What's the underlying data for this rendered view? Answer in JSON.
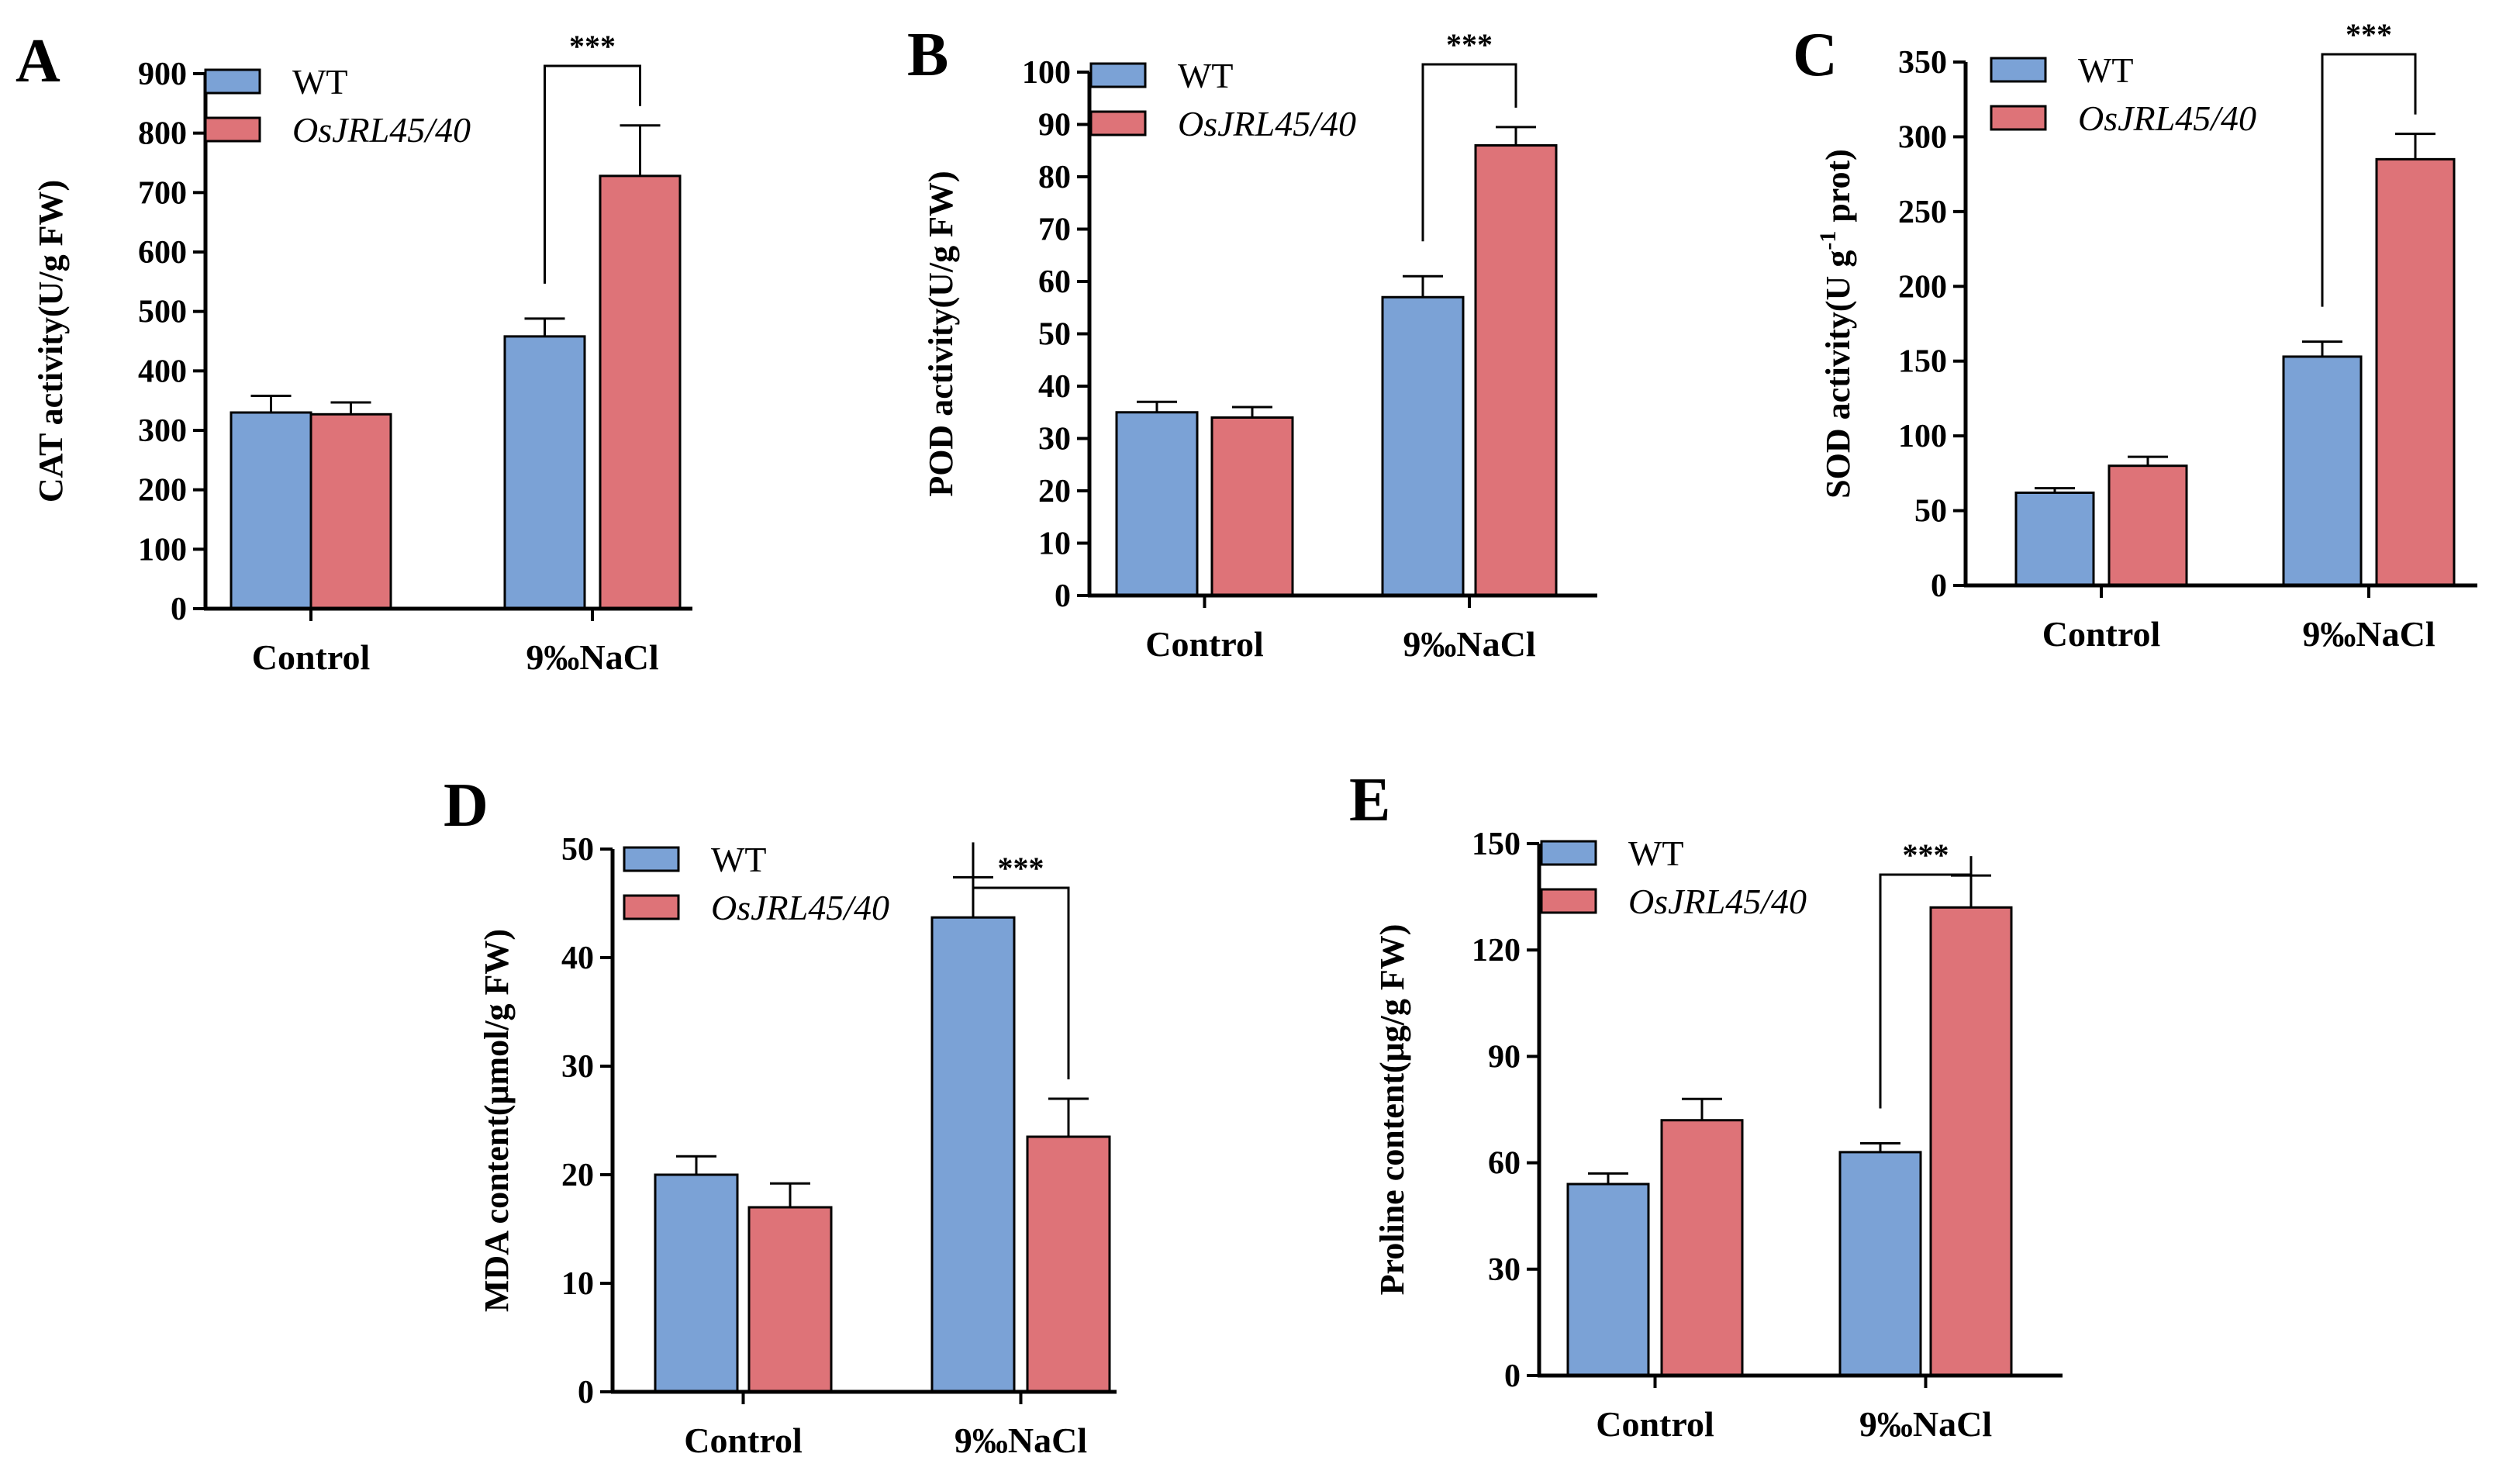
{
  "colors": {
    "wt": "#7ba2d6",
    "mutant": "#de7378",
    "axis": "#000000"
  },
  "chart_data": [
    {
      "type": "bar",
      "panel": "A",
      "ylabel": "CAT activity(U/g FW)",
      "ylim": [
        0,
        900
      ],
      "yticks": [
        "0",
        "100",
        "200",
        "300",
        "400",
        "500",
        "600",
        "700",
        "800",
        "900"
      ],
      "categories": [
        "Control",
        "9‰NaCl"
      ],
      "series": [
        {
          "name": "WT",
          "values": [
            330,
            458
          ],
          "errors": [
            28,
            30
          ]
        },
        {
          "name": "OsJRL45/40",
          "values": [
            327,
            728
          ],
          "errors": [
            20,
            85
          ]
        }
      ],
      "significance": "***"
    },
    {
      "type": "bar",
      "panel": "B",
      "ylabel": "POD activity(U/g FW)",
      "ylim": [
        0,
        100
      ],
      "yticks": [
        "0",
        "10",
        "20",
        "30",
        "40",
        "50",
        "60",
        "70",
        "80",
        "90",
        "100"
      ],
      "categories": [
        "Control",
        "9‰NaCl"
      ],
      "series": [
        {
          "name": "WT",
          "values": [
            35,
            57
          ],
          "errors": [
            2,
            4
          ]
        },
        {
          "name": "OsJRL45/40",
          "values": [
            34,
            86
          ],
          "errors": [
            2,
            3.5
          ]
        }
      ],
      "significance": "***"
    },
    {
      "type": "bar",
      "panel": "C",
      "ylabel_main": "SOD activity(U g",
      "ylabel_sup": "-1",
      "ylabel_end": " prot)",
      "ylim": [
        0,
        350
      ],
      "yticks": [
        "0",
        "50",
        "100",
        "150",
        "200",
        "250",
        "300",
        "350"
      ],
      "categories": [
        "Control",
        "9‰NaCl"
      ],
      "series": [
        {
          "name": "WT",
          "values": [
            62,
            153
          ],
          "errors": [
            3,
            10
          ]
        },
        {
          "name": "OsJRL45/40",
          "values": [
            80,
            285
          ],
          "errors": [
            6,
            17
          ]
        }
      ],
      "significance": "***"
    },
    {
      "type": "bar",
      "panel": "D",
      "ylabel": "MDA content(μmol/g FW)",
      "ylim": [
        0,
        50
      ],
      "yticks": [
        "0",
        "10",
        "20",
        "30",
        "40",
        "50"
      ],
      "categories": [
        "Control",
        "9‰NaCl"
      ],
      "series": [
        {
          "name": "WT",
          "values": [
            20,
            43.7
          ],
          "errors": [
            1.7,
            3.7
          ]
        },
        {
          "name": "OsJRL45/40",
          "values": [
            17,
            23.5
          ],
          "errors": [
            2.2,
            3.5
          ]
        }
      ],
      "significance": "***"
    },
    {
      "type": "bar",
      "panel": "E",
      "ylabel": "Proline content(μg/g FW)",
      "ylim": [
        0,
        150
      ],
      "yticks": [
        "0",
        "30",
        "60",
        "90",
        "120",
        "150"
      ],
      "categories": [
        "Control",
        "9‰NaCl"
      ],
      "series": [
        {
          "name": "WT",
          "values": [
            54,
            63
          ],
          "errors": [
            3,
            2.5
          ]
        },
        {
          "name": "OsJRL45/40",
          "values": [
            72,
            132
          ],
          "errors": [
            6,
            9
          ]
        }
      ],
      "significance": "***"
    }
  ]
}
